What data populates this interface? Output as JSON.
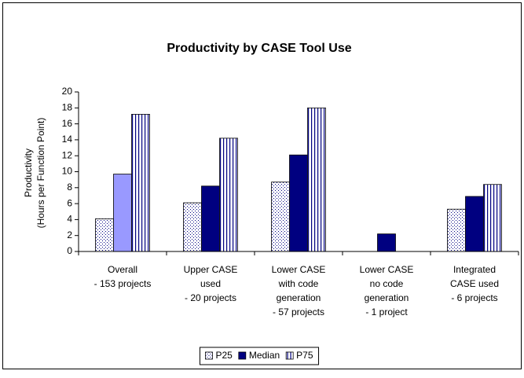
{
  "chart_data": {
    "type": "bar",
    "title": "Productivity by CASE Tool Use",
    "ylabel": [
      "Productivity",
      "(Hours per Function Point)"
    ],
    "categories": [
      [
        "Overall",
        "- 153 projects"
      ],
      [
        "Upper CASE",
        "used",
        "- 20 projects"
      ],
      [
        "Lower CASE",
        "with code",
        "generation",
        "- 57 projects"
      ],
      [
        "Lower CASE",
        "no code",
        "generation",
        "- 1 project"
      ],
      [
        "Integrated",
        "CASE used",
        "- 6 projects"
      ]
    ],
    "series": [
      {
        "name": "P25",
        "color": "#000080",
        "pattern": "dots",
        "values": [
          4.1,
          6.1,
          8.7,
          null,
          5.3
        ]
      },
      {
        "name": "Median",
        "color": "#000080",
        "colors": [
          "#9999ff",
          "#000080",
          "#000080",
          "#000080",
          "#000080"
        ],
        "pattern": "solid",
        "values": [
          9.7,
          8.2,
          12.1,
          2.2,
          6.9
        ]
      },
      {
        "name": "P75",
        "color": "#000080",
        "pattern": "vstripes",
        "values": [
          17.2,
          14.2,
          18.0,
          null,
          8.4
        ]
      }
    ],
    "ylim": [
      0,
      20
    ],
    "yticks": [
      0,
      2,
      4,
      6,
      8,
      10,
      12,
      14,
      16,
      18,
      20
    ],
    "grid": false,
    "legend": "bottom"
  }
}
